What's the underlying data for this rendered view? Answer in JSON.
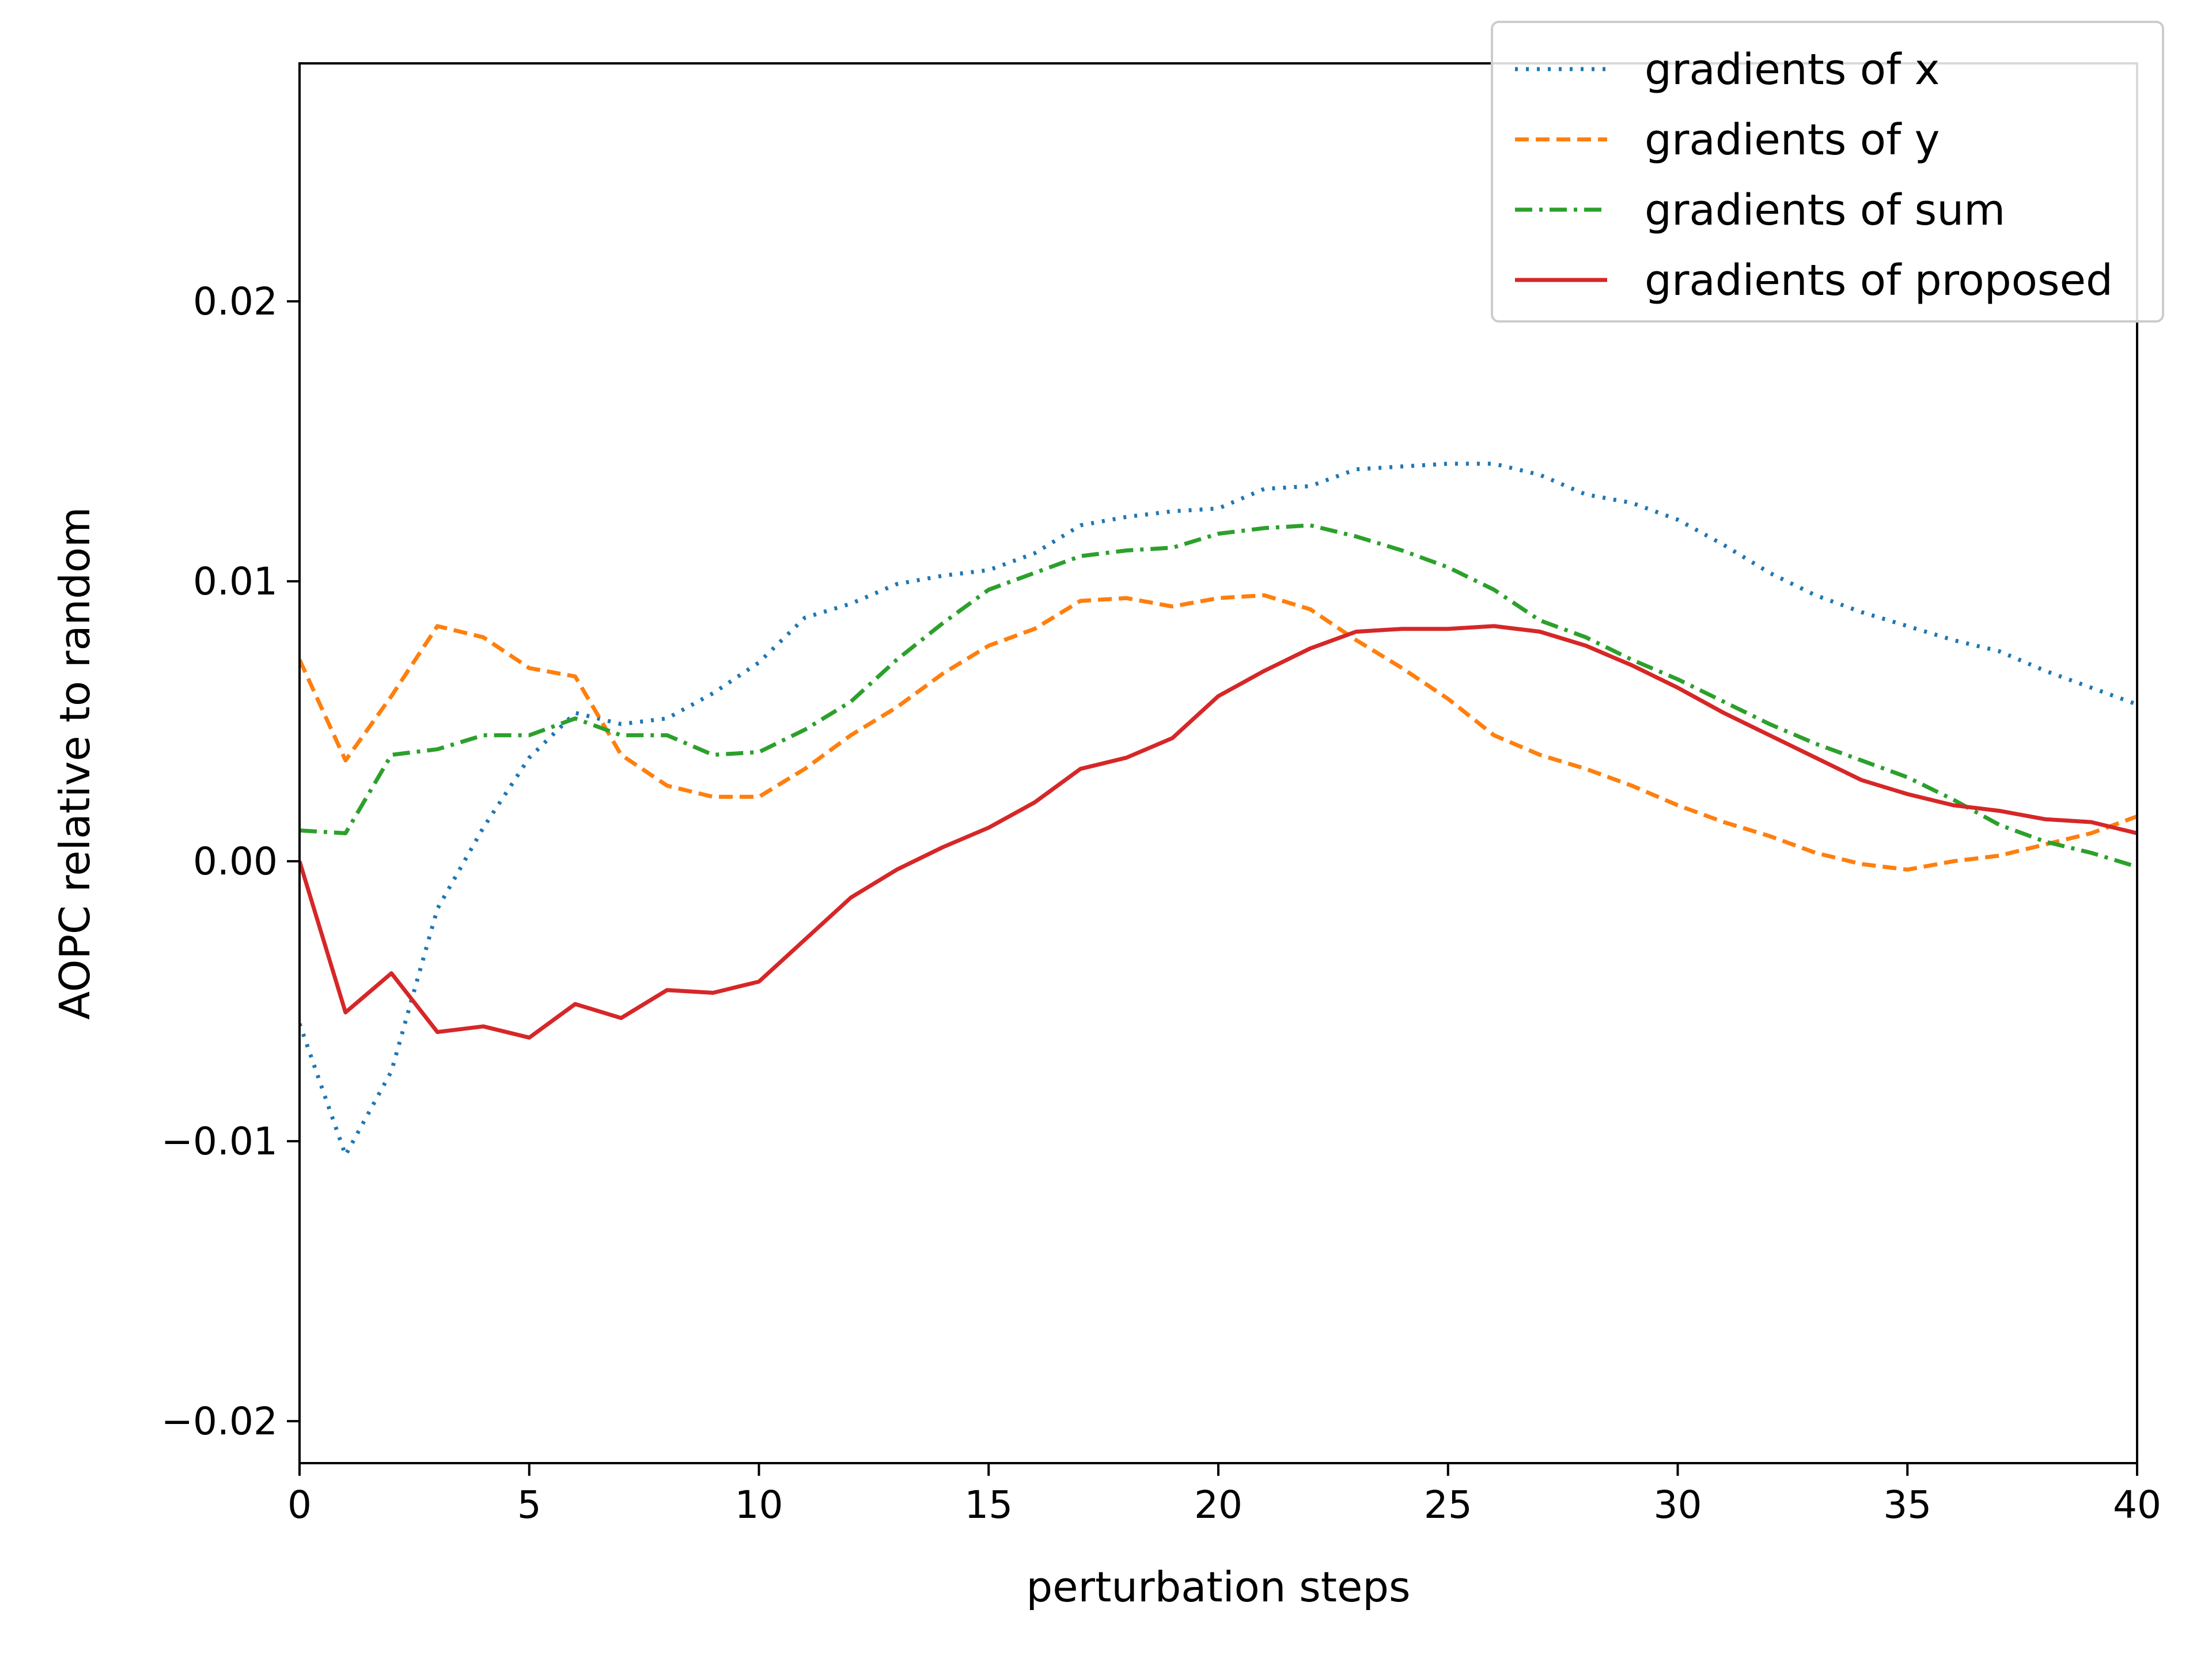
{
  "chart_data": {
    "type": "line",
    "title": "",
    "xlabel": "perturbation steps",
    "ylabel": "AOPC relative to random",
    "xlim": [
      0,
      40
    ],
    "ylim": [
      -0.0215,
      0.0285
    ],
    "xticks": [
      0,
      5,
      10,
      15,
      20,
      25,
      30,
      35,
      40
    ],
    "xtick_labels": [
      "0",
      "5",
      "10",
      "15",
      "20",
      "25",
      "30",
      "35",
      "40"
    ],
    "yticks": [
      -0.02,
      -0.01,
      0.0,
      0.01,
      0.02
    ],
    "ytick_labels": [
      "−0.02",
      "−0.01",
      "0.00",
      "0.01",
      "0.02"
    ],
    "grid": false,
    "legend_position": "top-right",
    "x": [
      0,
      1,
      2,
      3,
      4,
      5,
      6,
      7,
      8,
      9,
      10,
      11,
      12,
      13,
      14,
      15,
      16,
      17,
      18,
      19,
      20,
      21,
      22,
      23,
      24,
      25,
      26,
      27,
      28,
      29,
      30,
      31,
      32,
      33,
      34,
      35,
      36,
      37,
      38,
      39,
      40
    ],
    "series": [
      {
        "name": "gradients of x",
        "color": "#1f77b4",
        "style": "dotted",
        "values": [
          -0.0058,
          -0.0105,
          -0.0075,
          -0.0017,
          0.0012,
          0.0037,
          0.0053,
          0.0049,
          0.0051,
          0.006,
          0.0071,
          0.0087,
          0.0092,
          0.0099,
          0.0102,
          0.0104,
          0.011,
          0.012,
          0.0123,
          0.0125,
          0.0126,
          0.0133,
          0.0134,
          0.014,
          0.0141,
          0.0142,
          0.0142,
          0.0138,
          0.0131,
          0.0128,
          0.0122,
          0.0113,
          0.0103,
          0.0095,
          0.0089,
          0.0084,
          0.0079,
          0.0075,
          0.0068,
          0.0062,
          0.0056
        ]
      },
      {
        "name": "gradients of y",
        "color": "#ff7f0e",
        "style": "dashed",
        "values": [
          0.0072,
          0.0036,
          0.0059,
          0.0084,
          0.008,
          0.0069,
          0.0066,
          0.0038,
          0.0027,
          0.0023,
          0.0023,
          0.0033,
          0.0045,
          0.0055,
          0.0067,
          0.0077,
          0.0083,
          0.0093,
          0.0094,
          0.0091,
          0.0094,
          0.0095,
          0.009,
          0.0079,
          0.0069,
          0.0058,
          0.0045,
          0.0038,
          0.0033,
          0.0027,
          0.002,
          0.0014,
          0.0009,
          0.0003,
          -0.0001,
          -0.0003,
          0.0,
          0.0002,
          0.0006,
          0.001,
          0.0016
        ]
      },
      {
        "name": "gradients of sum",
        "color": "#2ca02c",
        "style": "dashdot",
        "values": [
          0.0011,
          0.001,
          0.0038,
          0.004,
          0.0045,
          0.0045,
          0.0051,
          0.0045,
          0.0045,
          0.0038,
          0.0039,
          0.0047,
          0.0057,
          0.0072,
          0.0085,
          0.0097,
          0.0103,
          0.0109,
          0.0111,
          0.0112,
          0.0117,
          0.0119,
          0.012,
          0.0116,
          0.0111,
          0.0105,
          0.0097,
          0.0086,
          0.008,
          0.0072,
          0.0065,
          0.0057,
          0.0049,
          0.0042,
          0.0036,
          0.003,
          0.0022,
          0.0013,
          0.0007,
          0.0003,
          -0.0002
        ]
      },
      {
        "name": "gradients of proposed",
        "color": "#d62728",
        "style": "solid",
        "values": [
          0.0,
          -0.0054,
          -0.004,
          -0.0061,
          -0.0059,
          -0.0063,
          -0.0051,
          -0.0056,
          -0.0046,
          -0.0047,
          -0.0043,
          -0.0028,
          -0.0013,
          -0.0003,
          0.0005,
          0.0012,
          0.0021,
          0.0033,
          0.0037,
          0.0044,
          0.0059,
          0.0068,
          0.0076,
          0.0082,
          0.0083,
          0.0083,
          0.0084,
          0.0082,
          0.0077,
          0.007,
          0.0062,
          0.0053,
          0.0045,
          0.0037,
          0.0029,
          0.0024,
          0.002,
          0.0018,
          0.0015,
          0.0014,
          0.001
        ]
      }
    ]
  }
}
